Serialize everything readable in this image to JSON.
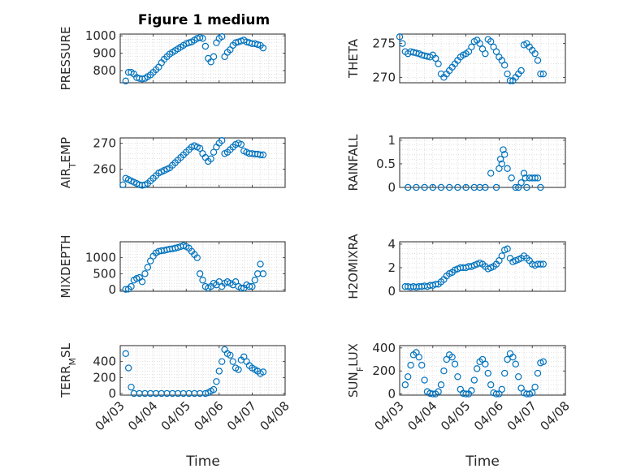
{
  "figure": {
    "title": "Figure 1 medium",
    "xlabel": "Time",
    "marker_color": "#0072bd",
    "x_tick_labels": [
      "04/03",
      "04/04",
      "04/05",
      "04/06",
      "04/07",
      "04/08"
    ]
  },
  "chart_data": [
    {
      "type": "scatter",
      "ylabel": "PRESSURE",
      "x_range": [
        "04/03",
        "04/08"
      ],
      "ylim": [
        730,
        1010
      ],
      "yticks": [
        800,
        900,
        1000
      ],
      "grid": true,
      "x": [
        "04/03 04:00",
        "04/03 06:00",
        "04/03 08:00",
        "04/03 10:00",
        "04/03 12:00",
        "04/03 14:00",
        "04/03 16:00",
        "04/03 18:00",
        "04/03 20:00",
        "04/03 22:00",
        "04/04 00:00",
        "04/04 02:00",
        "04/04 04:00",
        "04/04 06:00",
        "04/04 08:00",
        "04/04 10:00",
        "04/04 12:00",
        "04/04 14:00",
        "04/04 16:00",
        "04/04 18:00",
        "04/04 20:00",
        "04/04 22:00",
        "04/05 00:00",
        "04/05 02:00",
        "04/05 04:00",
        "04/05 06:00",
        "04/05 08:00",
        "04/05 10:00",
        "04/05 12:00",
        "04/05 14:00",
        "04/05 16:00",
        "04/05 18:00",
        "04/05 20:00",
        "04/05 22:00",
        "04/06 00:00",
        "04/06 02:00",
        "04/06 04:00",
        "04/06 06:00",
        "04/06 08:00",
        "04/06 10:00",
        "04/06 12:00",
        "04/06 14:00",
        "04/06 16:00",
        "04/06 18:00",
        "04/06 20:00",
        "04/06 22:00",
        "04/07 00:00",
        "04/07 02:00",
        "04/07 04:00",
        "04/07 06:00",
        "04/07 08:00"
      ],
      "y": [
        740,
        790,
        790,
        780,
        760,
        755,
        752,
        755,
        765,
        775,
        790,
        805,
        820,
        845,
        865,
        880,
        895,
        905,
        915,
        925,
        935,
        945,
        955,
        960,
        965,
        975,
        985,
        990,
        985,
        940,
        870,
        850,
        880,
        960,
        985,
        995,
        880,
        905,
        920,
        945,
        960,
        965,
        970,
        975,
        965,
        960,
        955,
        955,
        950,
        945,
        930
      ]
    },
    {
      "type": "scatter",
      "ylabel": "THETA",
      "x_range": [
        "04/03",
        "04/08"
      ],
      "ylim": [
        269.2,
        276.4
      ],
      "yticks": [
        270,
        275
      ],
      "grid": true,
      "x": [
        "04/03 00:00",
        "04/03 02:00",
        "04/03 04:00",
        "04/03 06:00",
        "04/03 08:00",
        "04/03 10:00",
        "04/03 12:00",
        "04/03 14:00",
        "04/03 16:00",
        "04/03 18:00",
        "04/03 20:00",
        "04/03 22:00",
        "04/04 00:00",
        "04/04 02:00",
        "04/04 04:00",
        "04/04 06:00",
        "04/04 08:00",
        "04/04 10:00",
        "04/04 12:00",
        "04/04 14:00",
        "04/04 16:00",
        "04/04 18:00",
        "04/04 20:00",
        "04/04 22:00",
        "04/05 00:00",
        "04/05 02:00",
        "04/05 04:00",
        "04/05 06:00",
        "04/05 08:00",
        "04/05 10:00",
        "04/05 12:00",
        "04/05 14:00",
        "04/05 16:00",
        "04/05 18:00",
        "04/05 20:00",
        "04/05 22:00",
        "04/06 00:00",
        "04/06 02:00",
        "04/06 04:00",
        "04/06 06:00",
        "04/06 08:00",
        "04/06 10:00",
        "04/06 12:00",
        "04/06 14:00",
        "04/06 16:00",
        "04/06 18:00",
        "04/06 20:00",
        "04/06 22:00",
        "04/07 00:00",
        "04/07 02:00",
        "04/07 04:00",
        "04/07 06:00",
        "04/07 08:00"
      ],
      "y": [
        276.0,
        275.0,
        273.8,
        273.5,
        273.8,
        273.7,
        273.6,
        273.5,
        273.3,
        273.2,
        273.1,
        273.0,
        273.3,
        272.8,
        272.0,
        270.5,
        270.0,
        270.5,
        271.0,
        271.5,
        272.0,
        272.5,
        273.0,
        273.3,
        273.5,
        273.8,
        274.5,
        275.3,
        275.5,
        275.0,
        274.2,
        273.5,
        275.6,
        275.3,
        274.5,
        273.8,
        273.0,
        272.5,
        271.8,
        270.5,
        269.5,
        269.5,
        270.0,
        270.5,
        271.0,
        274.8,
        275.0,
        274.5,
        274.0,
        273.5,
        272.5,
        270.5,
        270.5
      ]
    },
    {
      "type": "scatter",
      "ylabel": "AIR_TEMP",
      "x_range": [
        "04/03",
        "04/08"
      ],
      "ylim": [
        253,
        272
      ],
      "yticks": [
        260,
        270
      ],
      "grid": true,
      "x": [
        "04/03 02:00",
        "04/03 04:00",
        "04/03 06:00",
        "04/03 08:00",
        "04/03 10:00",
        "04/03 12:00",
        "04/03 14:00",
        "04/03 16:00",
        "04/03 18:00",
        "04/03 20:00",
        "04/03 22:00",
        "04/04 00:00",
        "04/04 02:00",
        "04/04 04:00",
        "04/04 06:00",
        "04/04 08:00",
        "04/04 10:00",
        "04/04 12:00",
        "04/04 14:00",
        "04/04 16:00",
        "04/04 18:00",
        "04/04 20:00",
        "04/04 22:00",
        "04/05 00:00",
        "04/05 02:00",
        "04/05 04:00",
        "04/05 06:00",
        "04/05 08:00",
        "04/05 10:00",
        "04/05 12:00",
        "04/05 14:00",
        "04/05 16:00",
        "04/05 18:00",
        "04/05 20:00",
        "04/05 22:00",
        "04/06 00:00",
        "04/06 02:00",
        "04/06 04:00",
        "04/06 06:00",
        "04/06 08:00",
        "04/06 10:00",
        "04/06 12:00",
        "04/06 14:00",
        "04/06 16:00",
        "04/06 18:00",
        "04/06 20:00",
        "04/06 22:00",
        "04/07 00:00",
        "04/07 02:00",
        "04/07 04:00",
        "04/07 06:00",
        "04/07 08:00"
      ],
      "y": [
        254.0,
        256.5,
        256.0,
        255.5,
        255.0,
        254.5,
        254.0,
        253.8,
        254.0,
        254.5,
        255.5,
        256.5,
        257.5,
        258.5,
        259.0,
        259.5,
        260.0,
        260.5,
        261.5,
        262.5,
        263.5,
        264.5,
        265.5,
        266.5,
        267.5,
        268.5,
        269.0,
        268.5,
        268.0,
        266.0,
        264.5,
        263.0,
        264.0,
        266.5,
        268.5,
        270.0,
        271.0,
        266.0,
        266.5,
        267.5,
        268.5,
        269.5,
        270.0,
        269.5,
        267.0,
        266.5,
        266.0,
        266.0,
        265.8,
        265.8,
        265.5,
        265.5
      ]
    },
    {
      "type": "scatter",
      "ylabel": "RAINFALL",
      "x_range": [
        "04/03",
        "04/08"
      ],
      "ylim": [
        0,
        1.05
      ],
      "yticks": [
        0,
        0.5,
        1
      ],
      "grid": true,
      "x": [
        "04/03 06:00",
        "04/03 12:00",
        "04/03 18:00",
        "04/04 00:00",
        "04/04 06:00",
        "04/04 12:00",
        "04/04 18:00",
        "04/05 00:00",
        "04/05 06:00",
        "04/05 10:00",
        "04/05 14:00",
        "04/05 18:00",
        "04/05 22:00",
        "04/06 00:00",
        "04/06 01:00",
        "04/06 02:00",
        "04/06 03:00",
        "04/06 04:00",
        "04/06 06:00",
        "04/06 09:00",
        "04/06 12:00",
        "04/06 14:00",
        "04/06 16:00",
        "04/06 18:00",
        "04/06 19:00",
        "04/06 20:00",
        "04/06 22:00",
        "04/07 00:00",
        "04/07 02:00",
        "04/07 04:00",
        "04/07 06:00"
      ],
      "y": [
        0,
        0,
        0,
        0,
        0,
        0,
        0,
        0,
        0,
        0,
        0,
        0.3,
        0,
        0.4,
        0.6,
        0.5,
        0.8,
        0.7,
        0.4,
        0.2,
        0,
        0,
        0.1,
        0.3,
        0.2,
        0,
        0.2,
        0.2,
        0.2,
        0.2,
        0
      ]
    },
    {
      "type": "scatter",
      "ylabel": "MIXDEPTH",
      "x_range": [
        "04/03",
        "04/08"
      ],
      "ylim": [
        -50,
        1500
      ],
      "yticks": [
        0,
        500,
        1000
      ],
      "grid": true,
      "x": [
        "04/03 04:00",
        "04/03 06:00",
        "04/03 08:00",
        "04/03 10:00",
        "04/03 12:00",
        "04/03 14:00",
        "04/03 16:00",
        "04/03 18:00",
        "04/03 20:00",
        "04/03 22:00",
        "04/04 00:00",
        "04/04 02:00",
        "04/04 04:00",
        "04/04 06:00",
        "04/04 08:00",
        "04/04 10:00",
        "04/04 12:00",
        "04/04 14:00",
        "04/04 16:00",
        "04/04 18:00",
        "04/04 20:00",
        "04/04 22:00",
        "04/05 00:00",
        "04/05 02:00",
        "04/05 04:00",
        "04/05 06:00",
        "04/05 08:00",
        "04/05 10:00",
        "04/05 12:00",
        "04/05 14:00",
        "04/05 16:00",
        "04/05 18:00",
        "04/05 20:00",
        "04/05 22:00",
        "04/06 00:00",
        "04/06 02:00",
        "04/06 04:00",
        "04/06 06:00",
        "04/06 08:00",
        "04/06 10:00",
        "04/06 12:00",
        "04/06 14:00",
        "04/06 16:00",
        "04/06 18:00",
        "04/06 20:00",
        "04/06 22:00",
        "04/07 00:00",
        "04/07 02:00",
        "04/07 04:00",
        "04/07 06:00",
        "04/07 08:00"
      ],
      "y": [
        10,
        20,
        100,
        300,
        350,
        380,
        250,
        500,
        700,
        900,
        1050,
        1150,
        1200,
        1220,
        1230,
        1250,
        1270,
        1280,
        1300,
        1320,
        1350,
        1380,
        1350,
        1300,
        1200,
        1100,
        1000,
        500,
        300,
        100,
        50,
        100,
        200,
        150,
        250,
        100,
        200,
        250,
        200,
        150,
        250,
        100,
        50,
        50,
        150,
        100,
        100,
        300,
        500,
        800,
        500
      ]
    },
    {
      "type": "scatter",
      "ylabel": "H2OMIXRA",
      "x_range": [
        "04/03",
        "04/08"
      ],
      "ylim": [
        0,
        4.2
      ],
      "yticks": [
        0,
        2,
        4
      ],
      "grid": true,
      "x": [
        "04/03 04:00",
        "04/03 06:00",
        "04/03 08:00",
        "04/03 10:00",
        "04/03 12:00",
        "04/03 14:00",
        "04/03 16:00",
        "04/03 18:00",
        "04/03 20:00",
        "04/03 22:00",
        "04/04 00:00",
        "04/04 02:00",
        "04/04 04:00",
        "04/04 06:00",
        "04/04 08:00",
        "04/04 10:00",
        "04/04 12:00",
        "04/04 14:00",
        "04/04 16:00",
        "04/04 18:00",
        "04/04 20:00",
        "04/04 22:00",
        "04/05 00:00",
        "04/05 02:00",
        "04/05 04:00",
        "04/05 06:00",
        "04/05 08:00",
        "04/05 10:00",
        "04/05 12:00",
        "04/05 14:00",
        "04/05 16:00",
        "04/05 18:00",
        "04/05 20:00",
        "04/05 22:00",
        "04/06 00:00",
        "04/06 02:00",
        "04/06 04:00",
        "04/06 06:00",
        "04/06 08:00",
        "04/06 10:00",
        "04/06 12:00",
        "04/06 14:00",
        "04/06 16:00",
        "04/06 18:00",
        "04/06 20:00",
        "04/06 22:00",
        "04/07 00:00",
        "04/07 02:00",
        "04/07 04:00",
        "04/07 06:00",
        "04/07 08:00"
      ],
      "y": [
        0.4,
        0.4,
        0.35,
        0.4,
        0.35,
        0.4,
        0.4,
        0.45,
        0.4,
        0.5,
        0.5,
        0.6,
        0.6,
        0.8,
        1.0,
        1.3,
        1.5,
        1.6,
        1.8,
        1.9,
        2.0,
        2.0,
        2.0,
        2.1,
        2.1,
        2.2,
        2.3,
        2.4,
        2.3,
        2.1,
        1.9,
        2.0,
        2.1,
        2.3,
        2.6,
        3.0,
        3.5,
        3.6,
        2.8,
        2.5,
        2.6,
        2.7,
        2.8,
        3.0,
        2.8,
        2.6,
        2.3,
        2.2,
        2.3,
        2.3,
        2.3
      ]
    },
    {
      "type": "scatter",
      "ylabel": "TERR_MSL",
      "x_range": [
        "04/03",
        "04/08"
      ],
      "ylim": [
        -20,
        600
      ],
      "yticks": [
        0,
        200,
        400
      ],
      "grid": true,
      "x": [
        "04/03 04:00",
        "04/03 06:00",
        "04/03 08:00",
        "04/03 10:00",
        "04/03 14:00",
        "04/03 18:00",
        "04/03 22:00",
        "04/04 02:00",
        "04/04 06:00",
        "04/04 10:00",
        "04/04 14:00",
        "04/04 18:00",
        "04/04 22:00",
        "04/05 02:00",
        "04/05 06:00",
        "04/05 10:00",
        "04/05 14:00",
        "04/05 16:00",
        "04/05 18:00",
        "04/05 20:00",
        "04/05 22:00",
        "04/06 00:00",
        "04/06 02:00",
        "04/06 04:00",
        "04/06 06:00",
        "04/06 08:00",
        "04/06 10:00",
        "04/06 12:00",
        "04/06 14:00",
        "04/06 16:00",
        "04/06 18:00",
        "04/06 20:00",
        "04/06 22:00",
        "04/07 00:00",
        "04/07 02:00",
        "04/07 04:00",
        "04/07 06:00",
        "04/07 08:00"
      ],
      "y": [
        500,
        320,
        80,
        0,
        0,
        0,
        0,
        0,
        0,
        0,
        0,
        0,
        0,
        0,
        0,
        0,
        0,
        10,
        30,
        50,
        150,
        280,
        400,
        550,
        500,
        480,
        400,
        320,
        300,
        420,
        460,
        400,
        350,
        320,
        300,
        280,
        250,
        270
      ]
    },
    {
      "type": "scatter",
      "ylabel": "SUN_FLUX",
      "x_range": [
        "04/03",
        "04/08"
      ],
      "ylim": [
        -10,
        420
      ],
      "yticks": [
        0,
        200,
        400
      ],
      "grid": true,
      "x": [
        "04/03 04:00",
        "04/03 06:00",
        "04/03 08:00",
        "04/03 10:00",
        "04/03 12:00",
        "04/03 14:00",
        "04/03 16:00",
        "04/03 18:00",
        "04/03 20:00",
        "04/03 22:00",
        "04/04 00:00",
        "04/04 02:00",
        "04/04 04:00",
        "04/04 06:00",
        "04/04 08:00",
        "04/04 10:00",
        "04/04 12:00",
        "04/04 14:00",
        "04/04 16:00",
        "04/04 18:00",
        "04/04 20:00",
        "04/04 22:00",
        "04/05 00:00",
        "04/05 02:00",
        "04/05 04:00",
        "04/05 06:00",
        "04/05 08:00",
        "04/05 10:00",
        "04/05 12:00",
        "04/05 14:00",
        "04/05 16:00",
        "04/05 18:00",
        "04/05 20:00",
        "04/05 22:00",
        "04/06 00:00",
        "04/06 02:00",
        "04/06 04:00",
        "04/06 06:00",
        "04/06 08:00",
        "04/06 10:00",
        "04/06 12:00",
        "04/06 14:00",
        "04/06 16:00",
        "04/06 18:00",
        "04/06 20:00",
        "04/06 22:00",
        "04/07 00:00",
        "04/07 02:00",
        "04/07 04:00",
        "04/07 06:00",
        "04/07 08:00"
      ],
      "y": [
        80,
        150,
        250,
        340,
        360,
        320,
        250,
        120,
        20,
        5,
        0,
        0,
        20,
        80,
        200,
        300,
        340,
        320,
        260,
        150,
        40,
        5,
        0,
        0,
        30,
        120,
        220,
        280,
        300,
        260,
        180,
        80,
        10,
        0,
        0,
        40,
        180,
        300,
        350,
        320,
        260,
        150,
        50,
        10,
        0,
        0,
        10,
        60,
        180,
        270,
        280
      ]
    }
  ]
}
